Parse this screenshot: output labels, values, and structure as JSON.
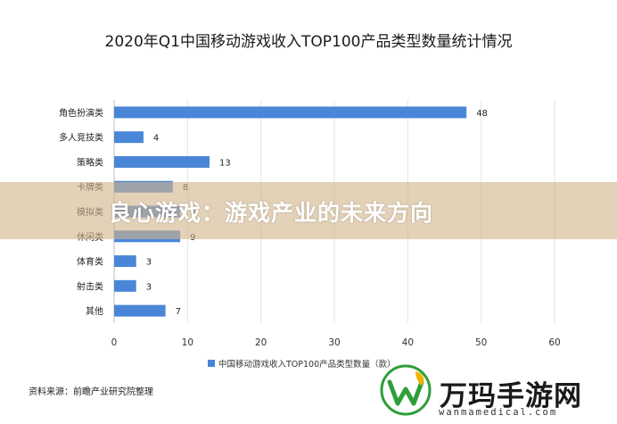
{
  "chart_data": {
    "type": "bar",
    "orientation": "horizontal",
    "title": "2020年Q1中国移动游戏收入TOP100产品类型数量统计情况",
    "categories": [
      "角色扮演类",
      "多人竞技类",
      "策略类",
      "卡牌类",
      "模拟类",
      "休闲类",
      "体育类",
      "射击类",
      "其他"
    ],
    "series": [
      {
        "name": "中国移动游戏收入TOP100产品类型数量（款）",
        "values": [
          48,
          4,
          13,
          8,
          9,
          9,
          3,
          3,
          7
        ]
      }
    ],
    "xlim": [
      0,
      60
    ],
    "xticks": [
      0,
      10,
      20,
      30,
      40,
      50,
      60
    ],
    "grid": true,
    "legend": "bottom",
    "bar_color": "#4a86d8"
  },
  "banner": {
    "text": "良心游戏：游戏产业的未来方向"
  },
  "source": {
    "text": "资料来源：前瞻产业研究院整理"
  },
  "watermark": {
    "name": "万玛手游网",
    "url": "wanmamedical.com",
    "logo": "w-leaf-logo-icon"
  }
}
